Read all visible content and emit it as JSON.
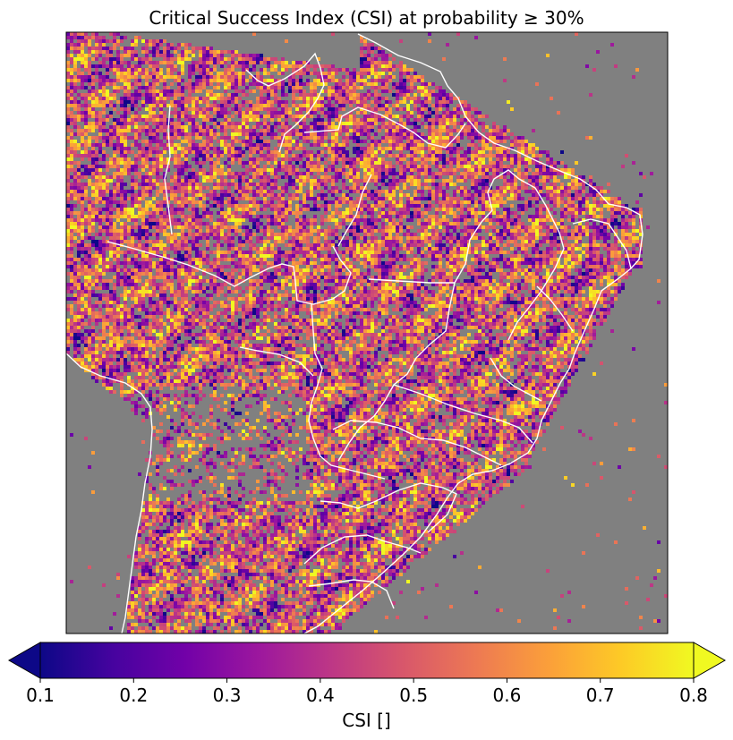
{
  "chart_data": {
    "type": "heatmap",
    "title": "Critical Success Index (CSI) at probability ≥ 30%",
    "subject": "gridded CSI values over South America (Brazil region); gray = no data / masked",
    "background_color": "#808080",
    "boundary_color": "#ffffff",
    "colormap": "plasma",
    "colorbar": {
      "label": "CSI []",
      "vmin": 0.1,
      "vmax": 0.8,
      "ticks": [
        0.1,
        0.2,
        0.3,
        0.4,
        0.5,
        0.6,
        0.7,
        0.8
      ],
      "tick_labels": [
        "0.1",
        "0.2",
        "0.3",
        "0.4",
        "0.5",
        "0.6",
        "0.7",
        "0.8"
      ],
      "extend": "both",
      "orientation": "horizontal",
      "colors": [
        "#0d0887",
        "#46039f",
        "#7201a8",
        "#9c179e",
        "#bd3786",
        "#d8576b",
        "#ed7953",
        "#fb9f3a",
        "#fdca26",
        "#f0f921"
      ]
    },
    "grid": false
  }
}
